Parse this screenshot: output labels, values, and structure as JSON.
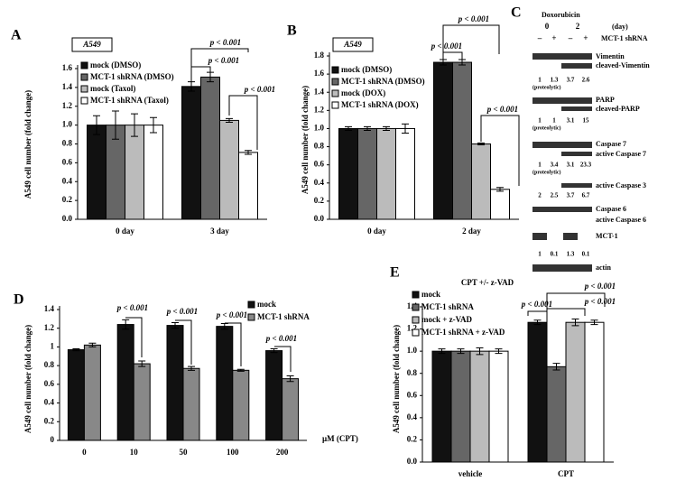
{
  "chart_data": [
    {
      "type": "bar",
      "panel": "A",
      "tag": "A549",
      "ylabel": "A549 cell number (fold change)",
      "categories": [
        "0 day",
        "3 day"
      ],
      "series": [
        {
          "name": "mock (DMSO)",
          "color": "#111111",
          "values": [
            1.0,
            1.41
          ],
          "errors": [
            0.1,
            0.05
          ]
        },
        {
          "name": "MCT-1 shRNA (DMSO)",
          "color": "#666666",
          "values": [
            1.0,
            1.51
          ],
          "errors": [
            0.15,
            0.05
          ]
        },
        {
          "name": "mock (Taxol)",
          "color": "#bbbbbb",
          "values": [
            1.0,
            1.05
          ],
          "errors": [
            0.12,
            0.02
          ]
        },
        {
          "name": "MCT-1 shRNA (Taxol)",
          "color": "#ffffff",
          "values": [
            1.0,
            0.71
          ],
          "errors": [
            0.08,
            0.02
          ]
        }
      ],
      "ylim": [
        0,
        1.6
      ],
      "yticks": [
        {
          "value": 0,
          "label": "0.0"
        },
        {
          "value": 0.2,
          "label": "0.2"
        },
        {
          "value": 0.4,
          "label": "0.4"
        },
        {
          "value": 0.6,
          "label": "0.6"
        },
        {
          "value": 0.8,
          "label": "0.8"
        },
        {
          "value": 1,
          "label": "1.0"
        },
        {
          "value": 1.2,
          "label": "1.2"
        },
        {
          "value": 1.4,
          "label": "1.4"
        },
        {
          "value": 1.6,
          "label": "1.6"
        }
      ],
      "annotations": [
        "p < 0.001",
        "p < 0.001",
        "p < 0.001"
      ]
    },
    {
      "type": "bar",
      "panel": "B",
      "tag": "A549",
      "ylabel": "A549 cell number (fold change)",
      "categories": [
        "0 day",
        "2 day"
      ],
      "series": [
        {
          "name": "mock (DMSO)",
          "color": "#111111",
          "values": [
            1.0,
            1.73
          ],
          "errors": [
            0.02,
            0.03
          ]
        },
        {
          "name": "MCT-1 shRNA (DMSO)",
          "color": "#666666",
          "values": [
            1.0,
            1.73
          ],
          "errors": [
            0.02,
            0.03
          ]
        },
        {
          "name": "mock (DOX)",
          "color": "#bbbbbb",
          "values": [
            1.0,
            0.83
          ],
          "errors": [
            0.02,
            0.01
          ]
        },
        {
          "name": "MCT-1 shRNA (DOX)",
          "color": "#ffffff",
          "values": [
            1.0,
            0.33
          ],
          "errors": [
            0.05,
            0.02
          ]
        }
      ],
      "ylim": [
        0,
        1.8
      ],
      "yticks": [
        {
          "value": 0,
          "label": "0.0"
        },
        {
          "value": 0.2,
          "label": "0.2"
        },
        {
          "value": 0.4,
          "label": "0.4"
        },
        {
          "value": 0.6,
          "label": "0.6"
        },
        {
          "value": 0.8,
          "label": "0.8"
        },
        {
          "value": 1,
          "label": "1.0"
        },
        {
          "value": 1.2,
          "label": "1.2"
        },
        {
          "value": 1.4,
          "label": "1.4"
        },
        {
          "value": 1.6,
          "label": "1.6"
        },
        {
          "value": 1.8,
          "label": "1.8"
        }
      ],
      "annotations": [
        "p < 0.001",
        "p < 0.001",
        "p < 0.001"
      ]
    },
    {
      "type": "bar",
      "panel": "D",
      "ylabel": "A549 cell number (fold change)",
      "xlabel": "µM (CPT)",
      "categories": [
        "0",
        "10",
        "50",
        "100",
        "200"
      ],
      "series": [
        {
          "name": "mock",
          "color": "#111111",
          "values": [
            0.97,
            1.24,
            1.23,
            1.22,
            0.96
          ],
          "errors": [
            0.01,
            0.05,
            0.03,
            0.03,
            0.02
          ]
        },
        {
          "name": "MCT-1 shRNA",
          "color": "#888888",
          "values": [
            1.02,
            0.82,
            0.77,
            0.75,
            0.66
          ],
          "errors": [
            0.02,
            0.03,
            0.02,
            0.01,
            0.03
          ]
        }
      ],
      "ylim": [
        0,
        1.4
      ],
      "yticks": [
        0,
        0.2,
        0.4,
        0.6,
        0.8,
        1,
        1.2,
        1.4
      ],
      "annotations": [
        "p < 0.001",
        "p < 0.001",
        "p < 0.001",
        "p < 0.001"
      ]
    },
    {
      "type": "bar",
      "panel": "E",
      "title": "CPT +/- z-VAD",
      "ylabel": "A549 cell number (fold change)",
      "categories": [
        "vehicle",
        "CPT"
      ],
      "series": [
        {
          "name": "mock",
          "color": "#111111",
          "values": [
            1.0,
            1.26
          ],
          "errors": [
            0.02,
            0.02
          ]
        },
        {
          "name": "MCT-1 shRNA",
          "color": "#666666",
          "values": [
            1.0,
            0.86
          ],
          "errors": [
            0.02,
            0.03
          ]
        },
        {
          "name": "mock + z-VAD",
          "color": "#bbbbbb",
          "values": [
            1.0,
            1.26
          ],
          "errors": [
            0.03,
            0.03
          ]
        },
        {
          "name": "MCT-1 shRNA + z-VAD",
          "color": "#ffffff",
          "values": [
            1.0,
            1.26
          ],
          "errors": [
            0.02,
            0.02
          ]
        }
      ],
      "ylim": [
        0,
        1.4
      ],
      "yticks": [
        {
          "value": 0,
          "label": "0.0"
        },
        {
          "value": 0.2,
          "label": "0.2"
        },
        {
          "value": 0.4,
          "label": "0.4"
        },
        {
          "value": 0.6,
          "label": "0.6"
        },
        {
          "value": 0.8,
          "label": "0.8"
        },
        {
          "value": 1,
          "label": "1.0"
        },
        {
          "value": 1.2,
          "label": "1.2"
        },
        {
          "value": 1.4,
          "label": "1.4"
        }
      ],
      "annotations": [
        "p < 0.001",
        "p < 0.001",
        "p < 0.001"
      ]
    }
  ],
  "blot": {
    "panel": "C",
    "treatment": "Doxorubicin",
    "days": [
      "0",
      "2"
    ],
    "day_unit": "(day)",
    "lanes": [
      "–",
      "+",
      "–",
      "+"
    ],
    "lane_label": "MCT-1 shRNA",
    "labels": [
      "Vimentin",
      "cleaved-Vimentin",
      "PARP",
      "cleaved-PARP",
      "Caspase 7",
      "active Caspase 7",
      "active Caspase 3",
      "Caspase 6",
      "active Caspase 6",
      "MCT-1",
      "actin"
    ],
    "quant": [
      [
        1,
        1.3,
        3.7,
        2.6
      ],
      [
        1,
        1,
        3.1,
        15
      ],
      [
        1,
        3.4,
        3.1,
        23.3
      ],
      [
        2,
        2.5,
        3.7,
        6.7
      ],
      [
        1,
        0.1,
        1.3,
        0.1
      ]
    ],
    "quant_notes": [
      "(proteolytic)",
      "(proteolytic)",
      "(proteolytic)"
    ]
  }
}
